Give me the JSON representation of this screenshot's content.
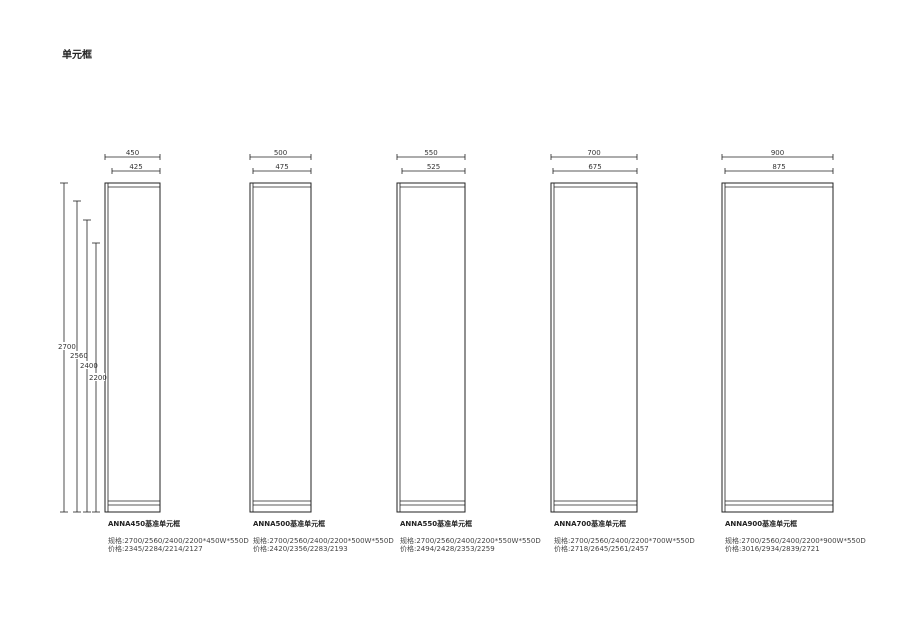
{
  "title": "单元框",
  "heights": [
    "2700",
    "2560",
    "2400",
    "2200"
  ],
  "units": [
    {
      "width": "450",
      "inner": "425",
      "name": "ANNA450基准单元框",
      "spec": "规格:2700/2560/2400/2200*450W*550D",
      "price": "价格:2345/2284/2214/2127"
    },
    {
      "width": "500",
      "inner": "475",
      "name": "ANNA500基准单元框",
      "spec": "规格:2700/2560/2400/2200*500W*550D",
      "price": "价格:2420/2356/2283/2193"
    },
    {
      "width": "550",
      "inner": "525",
      "name": "ANNA550基准单元框",
      "spec": "规格:2700/2560/2400/2200*550W*550D",
      "price": "价格:2494/2428/2353/2259"
    },
    {
      "width": "700",
      "inner": "675",
      "name": "ANNA700基准单元框",
      "spec": "规格:2700/2560/2400/2200*700W*550D",
      "price": "价格:2718/2645/2561/2457"
    },
    {
      "width": "900",
      "inner": "875",
      "name": "ANNA900基准单元框",
      "spec": "规格:2700/2560/2400/2200*900W*550D",
      "price": "价格:3016/2934/2839/2721"
    }
  ]
}
